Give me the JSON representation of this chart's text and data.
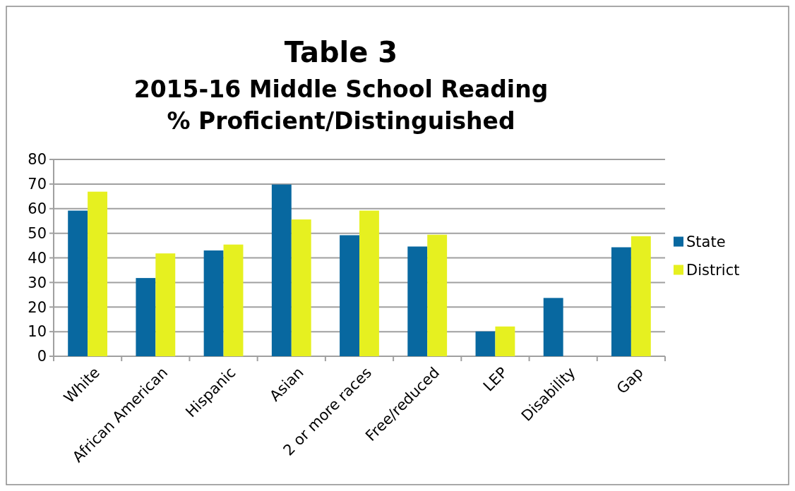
{
  "chart_data": {
    "type": "bar",
    "title": "Table 3",
    "subtitle": "2015-16 Middle School Reading\n% Proficient/Distinguished",
    "categories": [
      "White",
      "African American",
      "Hispanic",
      "Asian",
      "2 or more races",
      "Free/reduced",
      "LEP",
      "Disability",
      "Gap"
    ],
    "series": [
      {
        "name": "State",
        "color": "#0868a0",
        "values": [
          59.2,
          31.8,
          43.0,
          69.8,
          49.2,
          44.6,
          10.1,
          23.7,
          44.3
        ]
      },
      {
        "name": "District",
        "color": "#e6f020",
        "values": [
          66.9,
          41.8,
          45.4,
          55.6,
          59.2,
          49.4,
          12.1,
          null,
          48.8
        ]
      }
    ],
    "ylim": [
      0,
      80
    ],
    "yticks": [
      0,
      10,
      20,
      30,
      40,
      50,
      60,
      70,
      80
    ],
    "grid": "y",
    "legend": "right"
  }
}
